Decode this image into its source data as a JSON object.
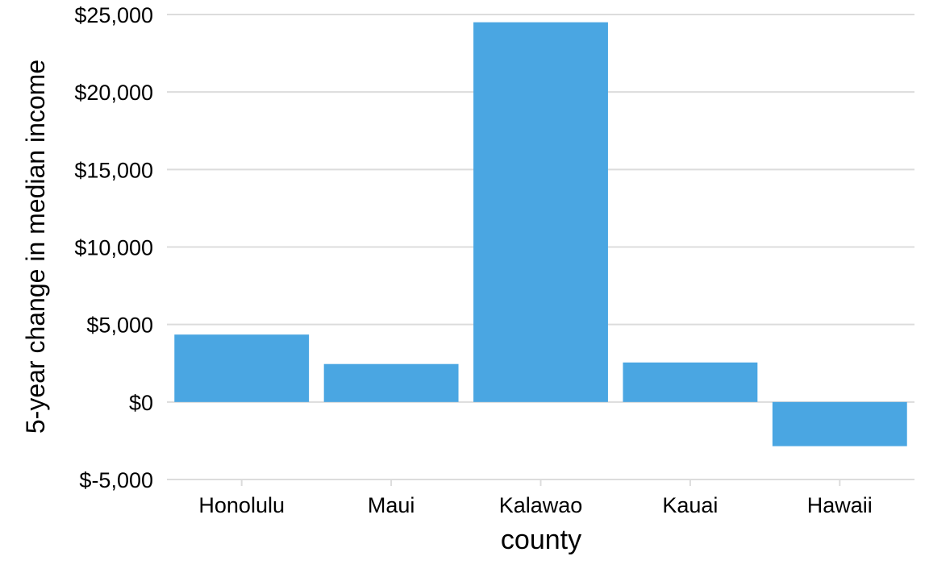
{
  "chart_data": {
    "type": "bar",
    "title": "",
    "xlabel": "county",
    "ylabel": "5-year change in median income",
    "categories": [
      "Honolulu",
      "Maui",
      "Kalawao",
      "Kauai",
      "Hawaii"
    ],
    "values": [
      4350,
      2450,
      24500,
      2550,
      -2850
    ],
    "ylim": [
      -5000,
      25000
    ],
    "yticks": [
      -5000,
      0,
      5000,
      10000,
      15000,
      20000,
      25000
    ],
    "ytick_labels": [
      "$-5,000",
      "$0",
      "$5,000",
      "$10,000",
      "$15,000",
      "$20,000",
      "$25,000"
    ],
    "grid": "horizontal",
    "legend": "none",
    "colors": {
      "bar": "#4aa6e2",
      "grid": "#dcdcdc",
      "text": "#000000"
    }
  }
}
